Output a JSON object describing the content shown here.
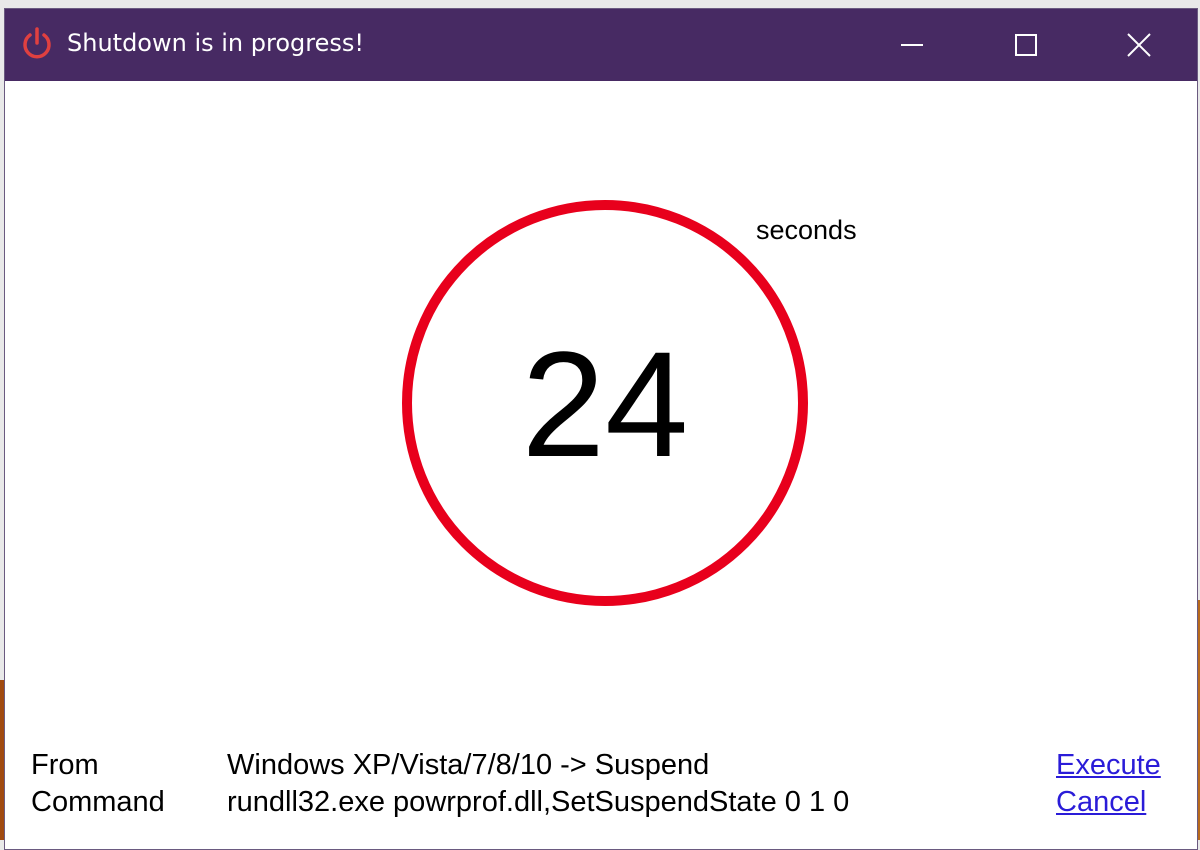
{
  "window": {
    "title": "Shutdown is in progress!",
    "accent": "#472a63",
    "icon": "power-icon"
  },
  "controls": {
    "minimize": "minimize-icon",
    "maximize": "maximize-icon",
    "close": "close-icon"
  },
  "countdown": {
    "value": "24",
    "unit": "seconds",
    "ring_color": "#e8001c"
  },
  "details": {
    "from_label": "From",
    "from_value": "Windows XP/Vista/7/8/10 -> Suspend",
    "command_label": "Command",
    "command_value": "rundll32.exe powrprof.dll,SetSuspendState 0 1 0"
  },
  "actions": {
    "execute": "Execute",
    "cancel": "Cancel"
  }
}
